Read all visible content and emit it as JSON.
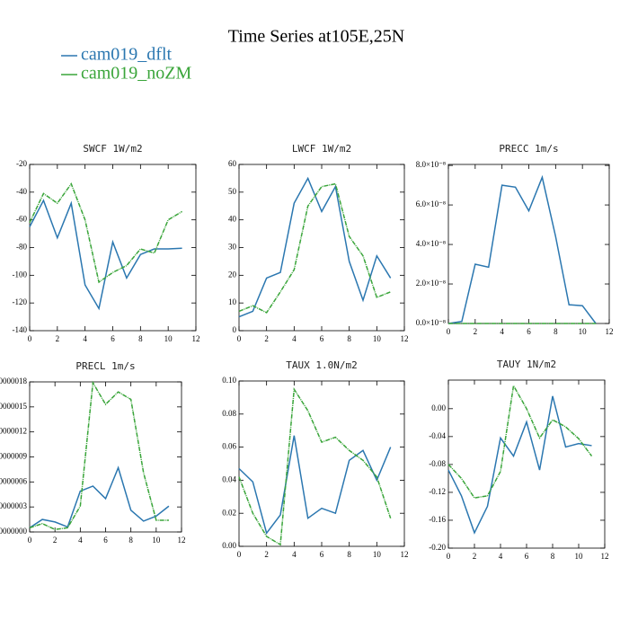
{
  "title": "Time Series at105E,25N",
  "chart_data": [
    {
      "type": "line",
      "title": "SWCF   1W/m2",
      "x": [
        0,
        1,
        2,
        3,
        4,
        5,
        6,
        7,
        8,
        9,
        10,
        11
      ],
      "xlim": [
        0,
        12
      ],
      "xticks": [
        0,
        2,
        4,
        6,
        8,
        10,
        12
      ],
      "ylim": [
        -140,
        -20
      ],
      "yticks": [
        -140,
        -120,
        -100,
        -80,
        -60,
        -40,
        -20
      ],
      "series": [
        {
          "name": "cam019_dflt",
          "color": "#2b77b0",
          "values": [
            -65,
            -46,
            -73,
            -48,
            -107,
            -124,
            -76,
            -102,
            -85,
            -81,
            -81,
            -80.5
          ]
        },
        {
          "name": "cam019_noZM",
          "color": "#3aa53a",
          "values": [
            -62,
            -41,
            -48,
            -34,
            -60,
            -105,
            -98,
            -93,
            -81,
            -84,
            -60,
            -54
          ]
        }
      ]
    },
    {
      "type": "line",
      "title": "LWCF   1W/m2",
      "x": [
        0,
        1,
        2,
        3,
        4,
        5,
        6,
        7,
        8,
        9,
        10,
        11
      ],
      "xlim": [
        0,
        12
      ],
      "xticks": [
        0,
        2,
        4,
        6,
        8,
        10,
        12
      ],
      "ylim": [
        0,
        60
      ],
      "yticks": [
        0,
        10,
        20,
        30,
        40,
        50,
        60
      ],
      "series": [
        {
          "name": "cam019_dflt",
          "color": "#2b77b0",
          "values": [
            5,
            7,
            19,
            21,
            46,
            55,
            43,
            52,
            25,
            11,
            27,
            19
          ]
        },
        {
          "name": "cam019_noZM",
          "color": "#3aa53a",
          "values": [
            7,
            9,
            6.5,
            14,
            22,
            45,
            52,
            53,
            34,
            27,
            12,
            14
          ]
        }
      ]
    },
    {
      "type": "line",
      "title": "PRECC   1m/s",
      "x": [
        0,
        1,
        2,
        3,
        4,
        5,
        6,
        7,
        8,
        9,
        10,
        11
      ],
      "xlim": [
        0,
        12
      ],
      "xticks": [
        0,
        2,
        4,
        6,
        8,
        10,
        12
      ],
      "ylim": [
        0,
        8.05e-08
      ],
      "yticks": [
        {
          "value": 0,
          "label": "0.0×10⁻⁸"
        },
        {
          "value": 2e-08,
          "label": "2.0×10⁻⁸"
        },
        {
          "value": 4e-08,
          "label": "4.0×10⁻⁸"
        },
        {
          "value": 6e-08,
          "label": "6.0×10⁻⁸"
        },
        {
          "value": 8e-08,
          "label": "8.0×10⁻⁸"
        }
      ],
      "series": [
        {
          "name": "cam019_dflt",
          "color": "#2b77b0",
          "values": [
            0,
            1e-09,
            3e-08,
            2.85e-08,
            7e-08,
            6.9e-08,
            5.7e-08,
            7.4e-08,
            4.4e-08,
            9.5e-09,
            9e-09,
            0
          ]
        },
        {
          "name": "cam019_noZM",
          "color": "#3aa53a",
          "values": [
            0,
            0,
            0,
            0,
            0,
            0,
            0,
            0,
            0,
            0,
            0,
            0
          ]
        }
      ]
    },
    {
      "type": "line",
      "title": "PRECL   1m/s",
      "x": [
        0,
        1,
        2,
        3,
        4,
        5,
        6,
        7,
        8,
        9,
        10,
        11
      ],
      "xlim": [
        0,
        12
      ],
      "xticks": [
        0,
        2,
        4,
        6,
        8,
        10,
        12
      ],
      "ylim": [
        0,
        1.8e-06
      ],
      "yticks": [
        {
          "value": 0,
          "label": "0000000"
        },
        {
          "value": 3e-07,
          "label": "0000003"
        },
        {
          "value": 6e-07,
          "label": "0000006"
        },
        {
          "value": 9e-07,
          "label": "0000009"
        },
        {
          "value": 1.2e-06,
          "label": "0000012"
        },
        {
          "value": 1.5e-06,
          "label": "0000015"
        },
        {
          "value": 1.8e-06,
          "label": "0000018"
        }
      ],
      "series": [
        {
          "name": "cam019_dflt",
          "color": "#2b77b0",
          "values": [
            5e-08,
            1.5e-07,
            1.2e-07,
            6e-08,
            4.9e-07,
            5.5e-07,
            4e-07,
            7.7e-07,
            2.6e-07,
            1.3e-07,
            1.9e-07,
            3.1e-07
          ]
        },
        {
          "name": "cam019_noZM",
          "color": "#3aa53a",
          "values": [
            5e-08,
            1e-07,
            3e-08,
            5e-08,
            3.1e-07,
            1.79e-06,
            1.53e-06,
            1.68e-06,
            1.59e-06,
            7.1e-07,
            1.4e-07,
            1.4e-07
          ]
        }
      ]
    },
    {
      "type": "line",
      "title": "TAUX   1.0N/m2",
      "x": [
        0,
        1,
        2,
        3,
        4,
        5,
        6,
        7,
        8,
        9,
        10,
        11
      ],
      "xlim": [
        0,
        12
      ],
      "xticks": [
        0,
        2,
        4,
        6,
        8,
        10,
        12
      ],
      "ylim": [
        0,
        0.1
      ],
      "yticks": [
        {
          "value": 0,
          "label": "0.00"
        },
        {
          "value": 0.02,
          "label": "0.02"
        },
        {
          "value": 0.04,
          "label": "0.04"
        },
        {
          "value": 0.06,
          "label": "0.06"
        },
        {
          "value": 0.08,
          "label": "0.08"
        },
        {
          "value": 0.1,
          "label": "0.10"
        }
      ],
      "series": [
        {
          "name": "cam019_dflt",
          "color": "#2b77b0",
          "values": [
            0.047,
            0.039,
            0.008,
            0.019,
            0.067,
            0.017,
            0.023,
            0.02,
            0.052,
            0.058,
            0.04,
            0.06
          ]
        },
        {
          "name": "cam019_noZM",
          "color": "#3aa53a",
          "values": [
            0.042,
            0.02,
            0.006,
            0.001,
            0.095,
            0.082,
            0.063,
            0.066,
            0.058,
            0.052,
            0.042,
            0.017
          ]
        }
      ]
    },
    {
      "type": "line",
      "title": "TAUY   1N/m2",
      "x": [
        0,
        1,
        2,
        3,
        4,
        5,
        6,
        7,
        8,
        9,
        10,
        11
      ],
      "xlim": [
        0,
        12
      ],
      "xticks": [
        0,
        2,
        4,
        6,
        8,
        10,
        12
      ],
      "ylim": [
        -0.2,
        0.041
      ],
      "yticks": [
        {
          "value": -0.2,
          "label": "-0.20"
        },
        {
          "value": -0.16,
          "label": "-0.16"
        },
        {
          "value": -0.12,
          "label": "-0.12"
        },
        {
          "value": -0.08,
          "label": "-0.08"
        },
        {
          "value": -0.04,
          "label": "-0.04"
        },
        {
          "value": 0,
          "label": "0.00"
        }
      ],
      "series": [
        {
          "name": "cam019_dflt",
          "color": "#2b77b0",
          "values": [
            -0.088,
            -0.125,
            -0.178,
            -0.14,
            -0.042,
            -0.068,
            -0.019,
            -0.088,
            0.018,
            -0.055,
            -0.05,
            -0.053
          ]
        },
        {
          "name": "cam019_noZM",
          "color": "#3aa53a",
          "values": [
            -0.08,
            -0.1,
            -0.128,
            -0.125,
            -0.09,
            0.033,
            0.0,
            -0.042,
            -0.016,
            -0.026,
            -0.043,
            -0.068
          ]
        }
      ]
    }
  ]
}
